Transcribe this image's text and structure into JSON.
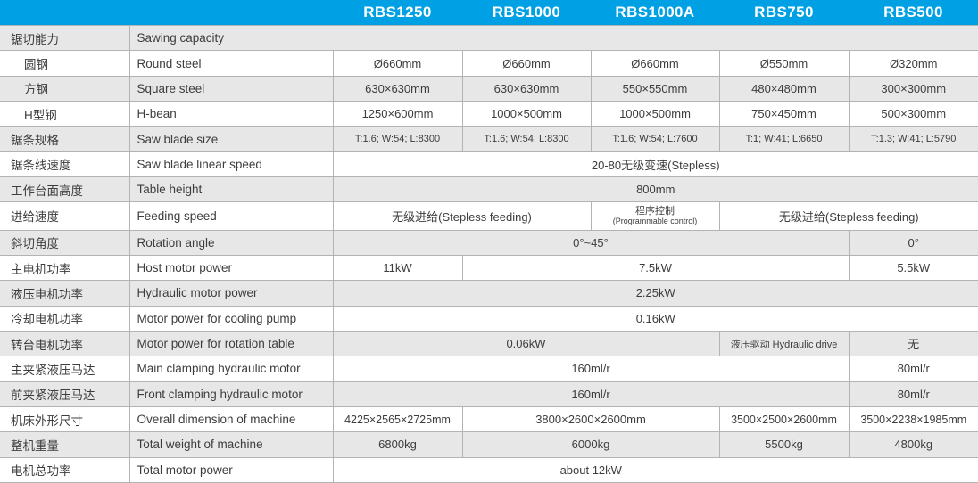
{
  "colors": {
    "header_bg": "#00a0e4",
    "header_text": "#ffffff",
    "shade_row_bg": "#e7e7e7",
    "border": "#b3b3b3",
    "text": "#3d3d3d"
  },
  "header": {
    "models": [
      "RBS1250",
      "RBS1000",
      "RBS1000A",
      "RBS750",
      "RBS500"
    ]
  },
  "table": {
    "rows": [
      {
        "cn": "锯切能力",
        "en": "Sawing capacity",
        "en_span": 6,
        "cells": []
      },
      {
        "cn": "圆钢",
        "indent": true,
        "en": "Round steel",
        "cells": [
          {
            "t": "Ø660mm"
          },
          {
            "t": "Ø660mm"
          },
          {
            "t": "Ø660mm"
          },
          {
            "t": "Ø550mm"
          },
          {
            "t": "Ø320mm"
          }
        ]
      },
      {
        "cn": "方钢",
        "indent": true,
        "en": "Square steel",
        "cells": [
          {
            "t": "630×630mm"
          },
          {
            "t": "630×630mm"
          },
          {
            "t": "550×550mm"
          },
          {
            "t": "480×480mm"
          },
          {
            "t": "300×300mm"
          }
        ]
      },
      {
        "cn": "H型钢",
        "indent": true,
        "en": "H-bean",
        "cells": [
          {
            "t": "1250×600mm"
          },
          {
            "t": "1000×500mm"
          },
          {
            "t": "1000×500mm"
          },
          {
            "t": "750×450mm"
          },
          {
            "t": "500×300mm"
          }
        ]
      },
      {
        "cn": "锯条规格",
        "en": "Saw blade size",
        "cells": [
          {
            "t": "T:1.6; W:54; L:8300",
            "cls": "sm"
          },
          {
            "t": "T:1.6; W:54; L:8300",
            "cls": "sm"
          },
          {
            "t": "T:1.6; W:54; L:7600",
            "cls": "sm"
          },
          {
            "t": "T:1; W:41; L:6650",
            "cls": "sm"
          },
          {
            "t": "T:1.3; W:41; L:5790",
            "cls": "sm"
          }
        ]
      },
      {
        "cn": "锯条线速度",
        "en": "Saw blade linear speed",
        "cells": [
          {
            "t": "20-80无级变速(Stepless)",
            "s": 5
          }
        ]
      },
      {
        "cn": "工作台面高度",
        "en": "Table height",
        "cells": [
          {
            "t": "800mm",
            "s": 5
          }
        ]
      },
      {
        "cn": "进给速度",
        "en": "Feeding speed",
        "cells": [
          {
            "t": "无级进给(Stepless feeding)",
            "s": 2
          },
          {
            "t": "程序控制",
            "sub": "(Programmable control)"
          },
          {
            "t": "无级进给(Stepless feeding)",
            "s": 2
          }
        ]
      },
      {
        "cn": "斜切角度",
        "en": "Rotation angle",
        "cells": [
          {
            "t": "0°~45°",
            "s": 4
          },
          {
            "t": "0°"
          }
        ]
      },
      {
        "cn": "主电机功率",
        "en": "Host motor power",
        "cells": [
          {
            "t": "11kW"
          },
          {
            "t": "7.5kW",
            "s": 3
          },
          {
            "t": "5.5kW"
          }
        ]
      },
      {
        "cn": "液压电机功率",
        "en": "Hydraulic motor power",
        "cells": [
          {
            "t": "2.25kW",
            "s": 5,
            "cls": "ghostdiv"
          }
        ]
      },
      {
        "cn": "冷却电机功率",
        "en": "Motor power for cooling pump",
        "cells": [
          {
            "t": "0.16kW",
            "s": 5
          }
        ]
      },
      {
        "cn": "转台电机功率",
        "en": "Motor power for rotation table",
        "cells": [
          {
            "t": "0.06kW",
            "s": 3
          },
          {
            "t": "液压驱动 Hydraulic drive",
            "cls": "sm"
          },
          {
            "t": "无"
          }
        ]
      },
      {
        "cn": "主夹紧液压马达",
        "en": "Main clamping hydraulic motor",
        "cells": [
          {
            "t": "160ml/r",
            "s": 4
          },
          {
            "t": "80ml/r"
          }
        ]
      },
      {
        "cn": "前夹紧液压马达",
        "en": "Front clamping hydraulic motor",
        "cells": [
          {
            "t": "160ml/r",
            "s": 4
          },
          {
            "t": "80ml/r"
          }
        ]
      },
      {
        "cn": "机床外形尺寸",
        "en": "Overall dimension of machine",
        "cells": [
          {
            "t": "4225×2565×2725mm",
            "cls": "sm2"
          },
          {
            "t": "3800×2600×2600mm",
            "s": 2
          },
          {
            "t": "3500×2500×2600mm",
            "cls": "sm2"
          },
          {
            "t": "3500×2238×1985mm",
            "cls": "sm2"
          }
        ]
      },
      {
        "cn": "整机重量",
        "en": "Total weight of machine",
        "cells": [
          {
            "t": "6800kg"
          },
          {
            "t": "6000kg",
            "s": 2
          },
          {
            "t": "5500kg"
          },
          {
            "t": "4800kg"
          }
        ]
      },
      {
        "cn": "电机总功率",
        "en": "Total motor power",
        "cells": [
          {
            "t": "about 12kW",
            "s": 4
          },
          {
            "t": "",
            "cls": "nb"
          }
        ]
      }
    ]
  }
}
